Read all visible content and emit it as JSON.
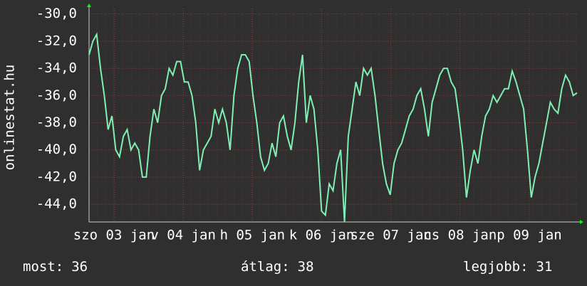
{
  "chart_data": {
    "type": "line",
    "y_axis_label": "onlinestat.hu",
    "ylim": [
      -45.3,
      -29.6
    ],
    "yticks": [
      {
        "value": -30,
        "label": "-30,0"
      },
      {
        "value": -32,
        "label": "-32,0"
      },
      {
        "value": -34,
        "label": "-34,0"
      },
      {
        "value": -36,
        "label": "-36,0"
      },
      {
        "value": -38,
        "label": "-38,0"
      },
      {
        "value": -40,
        "label": "-40,0"
      },
      {
        "value": -42,
        "label": "-42,0"
      },
      {
        "value": -44,
        "label": "-44,0"
      }
    ],
    "xtick_labels": [
      "szo 03 jan",
      "v 04 jan",
      "h 05 jan",
      "k 06 jan",
      "sze 07 jan",
      "cs 08 jan",
      "p 09 jan"
    ],
    "grid": true,
    "color": "#7ff0b4",
    "values": [
      -33,
      -32,
      -31.5,
      -34,
      -36,
      -38.5,
      -37.5,
      -40,
      -40.5,
      -39,
      -38.5,
      -40,
      -39.5,
      -40,
      -42,
      -42,
      -39,
      -37,
      -38,
      -36,
      -35.5,
      -34,
      -34.5,
      -33.5,
      -33.5,
      -35,
      -35,
      -36,
      -38,
      -41.5,
      -40,
      -39.5,
      -39,
      -37,
      -38,
      -37,
      -38,
      -40,
      -36,
      -34,
      -33,
      -33,
      -33.5,
      -36,
      -38,
      -40.5,
      -41.5,
      -41,
      -39.5,
      -40.5,
      -38,
      -37.5,
      -39,
      -40,
      -38,
      -35,
      -33,
      -38,
      -36,
      -37,
      -40,
      -44.5,
      -44.8,
      -42.5,
      -43,
      -41,
      -40,
      -45.3,
      -39,
      -37,
      -35,
      -36,
      -34,
      -34.5,
      -34,
      -36,
      -38.5,
      -41,
      -42.5,
      -43.3,
      -41,
      -40,
      -39.5,
      -38.5,
      -37.5,
      -37,
      -36,
      -35.5,
      -37,
      -39,
      -36.5,
      -35.5,
      -34.5,
      -34,
      -34,
      -35,
      -35.5,
      -37.5,
      -40,
      -43.5,
      -41.5,
      -40,
      -41,
      -39,
      -37.5,
      -37,
      -36,
      -36.5,
      -36,
      -35.5,
      -35.5,
      -34.2,
      -35,
      -36,
      -37,
      -40,
      -43.5,
      -42,
      -41,
      -39.5,
      -38,
      -36.5,
      -37,
      -37.3,
      -35.5,
      -34.5,
      -35,
      -36,
      -35.8
    ],
    "stats": [
      {
        "label": "most:",
        "value": 36
      },
      {
        "label": "átlag:",
        "value": 38
      },
      {
        "label": "legjobb:",
        "value": 31
      }
    ]
  }
}
